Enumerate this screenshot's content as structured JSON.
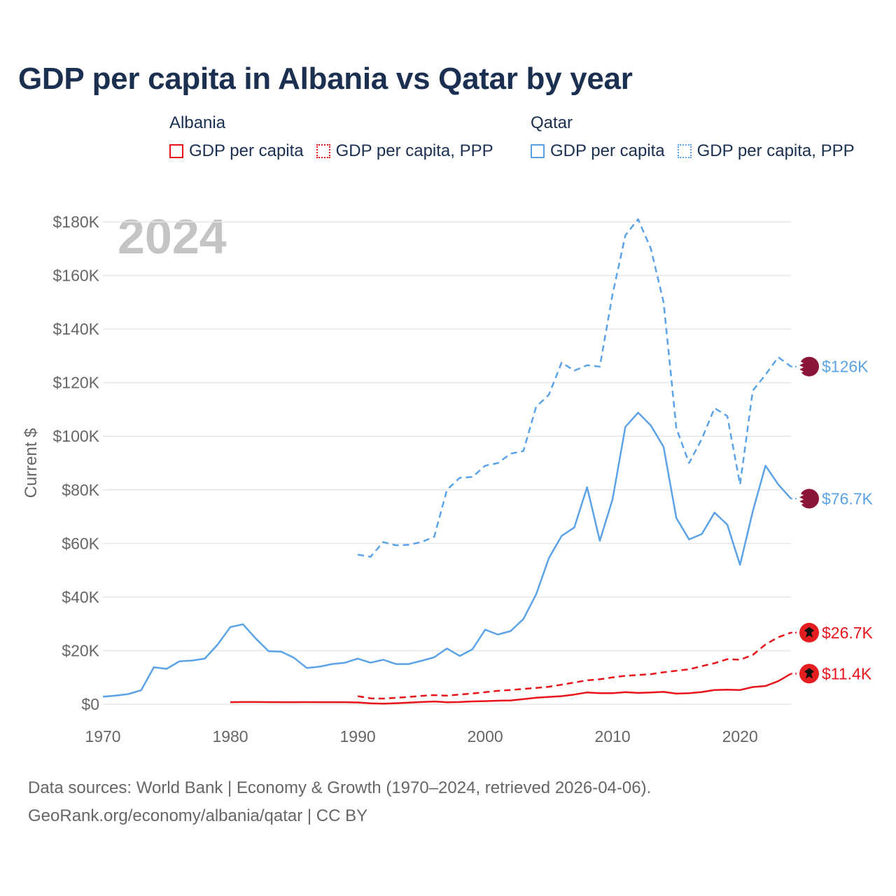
{
  "title": "GDP per capita in Albania vs Qatar by year",
  "legend": {
    "albania": {
      "title": "Albania",
      "items": [
        "GDP per capita",
        "GDP per capita, PPP"
      ]
    },
    "qatar": {
      "title": "Qatar",
      "items": [
        "GDP per capita",
        "GDP per capita, PPP"
      ]
    }
  },
  "colors": {
    "albania": "#e8141b",
    "qatar": "#5ba3e6",
    "qatar_flag": "#8a1538",
    "albania_flag": "#e41e20"
  },
  "sources": {
    "line1": "Data sources: World Bank | Economy & Growth (1970–2024, retrieved 2026-04-06).",
    "line2": "GeoRank.org/economy/albania/qatar | CC BY"
  },
  "chart_data": {
    "type": "line",
    "year_watermark": "2024",
    "ylabel": "Current $",
    "xlim": [
      1970,
      2024
    ],
    "ylim": [
      0,
      180000
    ],
    "x_ticks": [
      1970,
      1980,
      1990,
      2000,
      2010,
      2020
    ],
    "y_ticks": [
      0,
      20000,
      40000,
      60000,
      80000,
      100000,
      120000,
      140000,
      160000,
      180000
    ],
    "y_tick_labels": [
      "$0",
      "$20K",
      "$40K",
      "$60K",
      "$80K",
      "$100K",
      "$120K",
      "$140K",
      "$160K",
      "$180K"
    ],
    "series": [
      {
        "name": "Qatar GDP per capita, PPP",
        "country": "qatar",
        "dash": true,
        "end_label": "$126K",
        "x": [
          1990,
          1991,
          1992,
          1993,
          1994,
          1995,
          1996,
          1997,
          1998,
          1999,
          2000,
          2001,
          2002,
          2003,
          2004,
          2005,
          2006,
          2007,
          2008,
          2009,
          2010,
          2011,
          2012,
          2013,
          2014,
          2015,
          2016,
          2017,
          2018,
          2019,
          2020,
          2021,
          2022,
          2023,
          2024
        ],
        "values": [
          55800,
          55000,
          60500,
          59300,
          59500,
          60500,
          62500,
          80000,
          84500,
          84800,
          89000,
          90000,
          93500,
          94500,
          111000,
          115500,
          127500,
          124500,
          126500,
          126000,
          153000,
          175000,
          181000,
          170000,
          150000,
          103000,
          90000,
          99000,
          110500,
          107500,
          82000,
          117000,
          123000,
          129500,
          126000
        ]
      },
      {
        "name": "Qatar GDP per capita",
        "country": "qatar",
        "dash": false,
        "end_label": "$76.7K",
        "x": [
          1970,
          1971,
          1972,
          1973,
          1974,
          1975,
          1976,
          1977,
          1978,
          1979,
          1980,
          1981,
          1982,
          1983,
          1984,
          1985,
          1986,
          1987,
          1988,
          1989,
          1990,
          1991,
          1992,
          1993,
          1994,
          1995,
          1996,
          1997,
          1998,
          1999,
          2000,
          2001,
          2002,
          2003,
          2004,
          2005,
          2006,
          2007,
          2008,
          2009,
          2010,
          2011,
          2012,
          2013,
          2014,
          2015,
          2016,
          2017,
          2018,
          2019,
          2020,
          2021,
          2022,
          2023,
          2024
        ],
        "values": [
          2800,
          3200,
          3800,
          5200,
          13800,
          13200,
          16000,
          16300,
          17000,
          22200,
          28800,
          29800,
          24500,
          19800,
          19600,
          17300,
          13500,
          14000,
          15000,
          15500,
          17000,
          15500,
          16600,
          15000,
          15000,
          16200,
          17500,
          20800,
          18000,
          20500,
          27800,
          26000,
          27300,
          31800,
          41000,
          54500,
          62800,
          66000,
          81000,
          61000,
          76500,
          103500,
          108800,
          104000,
          96000,
          69500,
          61500,
          63500,
          71500,
          67000,
          52000,
          72000,
          89000,
          82000,
          76700
        ]
      },
      {
        "name": "Albania GDP per capita, PPP",
        "country": "albania",
        "dash": true,
        "end_label": "$26.7K",
        "x": [
          1990,
          1991,
          1992,
          1993,
          1994,
          1995,
          1996,
          1997,
          1998,
          1999,
          2000,
          2001,
          2002,
          2003,
          2004,
          2005,
          2006,
          2007,
          2008,
          2009,
          2010,
          2011,
          2012,
          2013,
          2014,
          2015,
          2016,
          2017,
          2018,
          2019,
          2020,
          2021,
          2022,
          2023,
          2024
        ],
        "values": [
          3000,
          2200,
          2100,
          2400,
          2700,
          3100,
          3400,
          3200,
          3600,
          4000,
          4500,
          5000,
          5300,
          5700,
          6100,
          6500,
          7300,
          8100,
          8900,
          9300,
          10000,
          10600,
          10900,
          11200,
          11900,
          12500,
          13000,
          14200,
          15300,
          16800,
          16600,
          18400,
          22300,
          25000,
          26700
        ]
      },
      {
        "name": "Albania GDP per capita",
        "country": "albania",
        "dash": false,
        "end_label": "$11.4K",
        "x": [
          1980,
          1981,
          1982,
          1983,
          1984,
          1985,
          1986,
          1987,
          1988,
          1989,
          1990,
          1991,
          1992,
          1993,
          1994,
          1995,
          1996,
          1997,
          1998,
          1999,
          2000,
          2001,
          2002,
          2003,
          2004,
          2005,
          2006,
          2007,
          2008,
          2009,
          2010,
          2011,
          2012,
          2013,
          2014,
          2015,
          2016,
          2017,
          2018,
          2019,
          2020,
          2021,
          2022,
          2023,
          2024
        ],
        "values": [
          750,
          800,
          800,
          780,
          770,
          770,
          780,
          760,
          750,
          750,
          650,
          350,
          210,
          370,
          610,
          810,
          1030,
          720,
          810,
          1040,
          1140,
          1300,
          1420,
          1870,
          2400,
          2710,
          3000,
          3600,
          4400,
          4100,
          4100,
          4500,
          4200,
          4400,
          4600,
          3950,
          4100,
          4550,
          5300,
          5400,
          5300,
          6400,
          6800,
          8600,
          11400
        ]
      }
    ]
  }
}
